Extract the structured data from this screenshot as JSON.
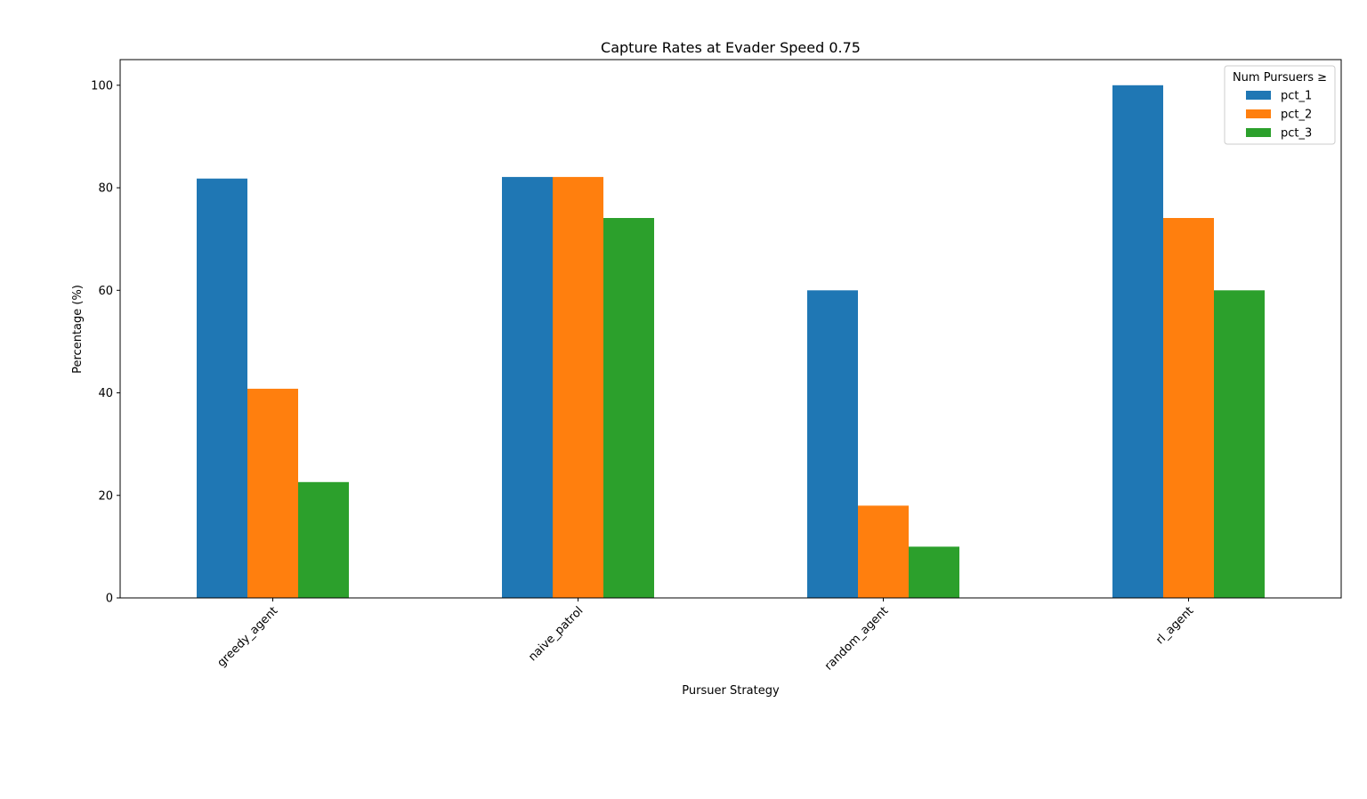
{
  "chart_data": {
    "type": "bar",
    "title": "Capture Rates at Evader Speed 0.75",
    "xlabel": "Pursuer Strategy",
    "ylabel": "Percentage (%)",
    "categories": [
      "greedy_agent",
      "naive_patrol",
      "random_agent",
      "rl_agent"
    ],
    "series": [
      {
        "name": "pct_1",
        "color": "#1f77b4",
        "values": [
          81.8,
          82.1,
          60.0,
          100.0
        ]
      },
      {
        "name": "pct_2",
        "color": "#ff7f0e",
        "values": [
          40.8,
          82.1,
          18.0,
          74.1
        ]
      },
      {
        "name": "pct_3",
        "color": "#2ca02c",
        "values": [
          22.6,
          74.1,
          10.0,
          60.0
        ]
      }
    ],
    "ylim": [
      0,
      105
    ],
    "yticks": [
      0,
      20,
      40,
      60,
      80,
      100
    ],
    "grid": false,
    "legend": {
      "title": "Num Pursuers ≥",
      "placement": "top-right"
    }
  }
}
